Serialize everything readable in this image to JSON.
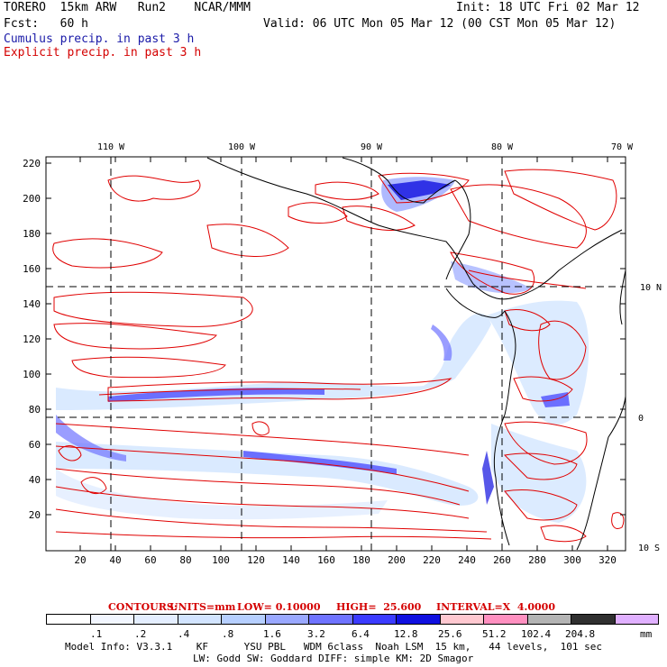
{
  "header": {
    "model": "TORERO  15km ARW   Run2    NCAR/MMM",
    "init": "Init: 18 UTC Fri 02 Mar 12",
    "fcst": "Fcst:   60 h",
    "valid": "Valid: 06 UTC Mon 05 Mar 12 (00 CST Mon 05 Mar 12)",
    "cumulus": "Cumulus precip. in past 3 h",
    "explicit": "Explicit precip. in past 3 h"
  },
  "map": {
    "lon_labels": [
      "110 W",
      "100 W",
      "90 W",
      "80 W",
      "70 W"
    ],
    "lat_labels": [
      "10 N",
      "0",
      "10 S"
    ],
    "y_ticks": [
      "220",
      "200",
      "180",
      "160",
      "140",
      "120",
      "100",
      "80",
      "60",
      "40",
      "20"
    ],
    "x_ticks": [
      "20",
      "40",
      "60",
      "80",
      "100",
      "120",
      "140",
      "160",
      "180",
      "200",
      "220",
      "240",
      "260",
      "280",
      "300",
      "320"
    ],
    "colors": {
      "explicit_contour": "#e00000",
      "cumulus_light": "#d6e8ff",
      "cumulus_mid": "#7f8dff",
      "cumulus_dark": "#1a1aff",
      "coast": "#000000"
    }
  },
  "contours_line": {
    "label": "CONTOURS:",
    "units": "UNITS=mm",
    "low": "LOW= 0.10000",
    "high": "HIGH=  25.600",
    "interval": "INTERVAL=X  4.0000"
  },
  "colorbar": {
    "unit": "mm",
    "labels": [
      ".1",
      ".2",
      ".4",
      ".8",
      "1.6",
      "3.2",
      "6.4",
      "12.8",
      "25.6",
      "51.2",
      "102.4",
      "204.8"
    ],
    "colors": [
      "#ffffff",
      "#f2f6ff",
      "#e4eeff",
      "#d2e4ff",
      "#b6cfff",
      "#9aa8ff",
      "#6f73ff",
      "#3b3bff",
      "#1010e0",
      "#ffc8d0",
      "#ff90c0",
      "#b4b4b4",
      "#303030",
      "#e0b0ff"
    ]
  },
  "footer": {
    "line1": "Model Info: V3.3.1    KF      YSU PBL   WDM 6class  Noah LSM  15 km,   44 levels,  101 sec",
    "line2": "LW: Godd SW: Goddard DIFF: simple KM: 2D Smagor"
  }
}
